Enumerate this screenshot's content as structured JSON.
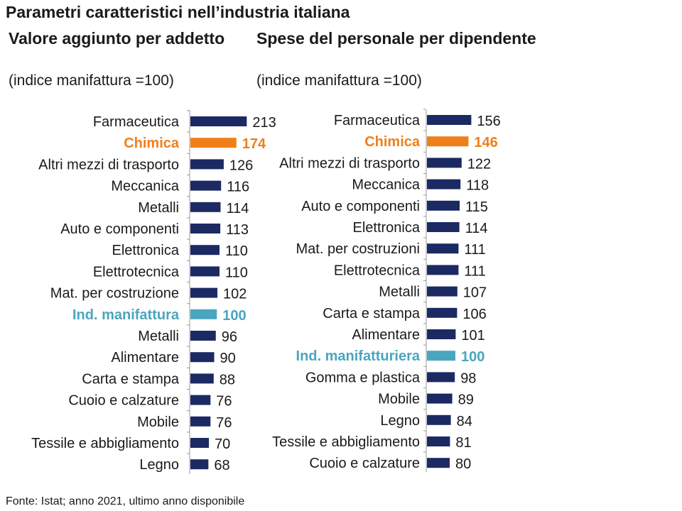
{
  "title": "Parametri caratteristici nell’industria italiana",
  "source": "Fonte: Istat; anno 2021, ultimo anno disponibile",
  "colors": {
    "default": "#1b2a63",
    "highlight": "#f07f18",
    "benchmark": "#4aa5bf",
    "label": "#1a1a1a"
  },
  "chart_data": [
    {
      "type": "bar",
      "orientation": "horizontal",
      "title": "Valore aggiunto per addetto",
      "subtitle": "(indice manifattura =100)",
      "categories": [
        "Farmaceutica",
        "Chimica",
        "Altri mezzi di trasporto",
        "Meccanica",
        "Metalli",
        "Auto e componenti",
        "Elettronica",
        "Elettrotecnica",
        "Mat. per costruzione",
        "Ind. manifattura",
        "Metalli",
        "Alimentare",
        "Carta e stampa",
        "Cuoio e calzature",
        "Mobile",
        "Tessile e abbigliamento",
        "Legno"
      ],
      "values": [
        213,
        174,
        126,
        116,
        114,
        113,
        110,
        110,
        102,
        100,
        96,
        90,
        88,
        76,
        76,
        70,
        68
      ],
      "highlight": [
        "default",
        "highlight",
        "default",
        "default",
        "default",
        "default",
        "default",
        "default",
        "default",
        "benchmark",
        "default",
        "default",
        "default",
        "default",
        "default",
        "default",
        "default"
      ]
    },
    {
      "type": "bar",
      "orientation": "horizontal",
      "title": "Spese del personale per dipendente",
      "subtitle": "(indice manifattura =100)",
      "categories": [
        "Farmaceutica",
        "Chimica",
        "Altri mezzi di trasporto",
        "Meccanica",
        "Auto e componenti",
        "Elettronica",
        "Mat. per costruzioni",
        "Elettrotecnica",
        "Metalli",
        "Carta e stampa",
        "Alimentare",
        "Ind. manifatturiera",
        "Gomma e plastica",
        "Mobile",
        "Legno",
        "Tessile e abbigliamento",
        "Cuoio e calzature"
      ],
      "values": [
        156,
        146,
        122,
        118,
        115,
        114,
        111,
        111,
        107,
        106,
        101,
        100,
        98,
        89,
        84,
        81,
        80
      ],
      "highlight": [
        "default",
        "highlight",
        "default",
        "default",
        "default",
        "default",
        "default",
        "default",
        "default",
        "default",
        "default",
        "benchmark",
        "default",
        "default",
        "default",
        "default",
        "default"
      ]
    }
  ]
}
